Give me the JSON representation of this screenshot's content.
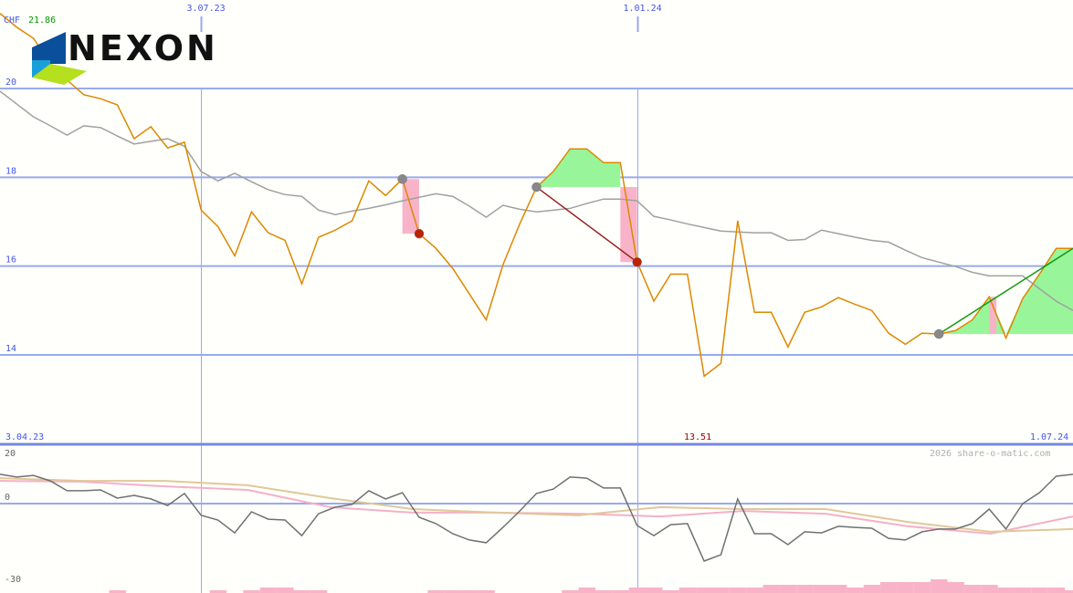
{
  "header": {
    "currency": "CHF",
    "high_value": "21.86",
    "logo_text": "NEXON"
  },
  "footer": {
    "start_date": "3.04.23",
    "low_value": "13.51",
    "end_date": "1.07.24",
    "copyright": "2026 share-o-matic.com"
  },
  "colors": {
    "price": "#dd8800",
    "average": "#a0a0a0",
    "grid": "#99aaee",
    "label": "#4455ee",
    "low": "#990000",
    "high": "#009900",
    "gain_fill": "#99f599",
    "loss_fill": "#f9b3c8",
    "osc_main": "#707070",
    "osc_pink": "#f5b0c8",
    "osc_tan": "#e0c89a",
    "volume": "#f9b3c8"
  },
  "chart_data": [
    {
      "type": "line",
      "ylim": [
        13,
        22
      ],
      "y_ticks": [
        "20",
        "18",
        "16",
        "14"
      ],
      "y_tick_values": [
        20,
        18,
        16,
        14
      ],
      "x_ticks": [
        "3.07.23",
        "1.01.24"
      ],
      "x_tick_weeks": [
        12,
        38
      ],
      "grid": true,
      "series": [
        {
          "values": [
            21.69,
            21.38,
            21.13,
            20.56,
            20.19,
            19.86,
            19.77,
            19.63,
            18.87,
            19.14,
            18.66,
            18.79,
            17.26,
            16.89,
            16.23,
            17.22,
            16.75,
            16.58,
            15.6,
            16.65,
            16.81,
            17.02,
            17.92,
            17.59,
            17.96,
            16.73,
            16.4,
            15.95,
            15.37,
            14.79,
            16.03,
            16.95,
            17.78,
            18.13,
            18.64,
            18.64,
            18.33,
            18.33,
            16.09,
            15.21,
            15.82,
            15.82,
            13.52,
            13.81,
            17.02,
            14.96,
            14.96,
            14.18,
            14.96,
            15.08,
            15.29,
            15.14,
            15.0,
            14.49,
            14.24,
            14.49,
            14.47,
            14.55,
            14.79,
            15.31,
            14.38,
            15.27,
            15.82,
            16.4,
            16.4
          ]
        },
        {
          "values": [
            19.94,
            19.65,
            19.36,
            19.16,
            18.95,
            19.16,
            19.12,
            18.93,
            18.75,
            18.81,
            18.87,
            18.7,
            18.13,
            17.92,
            18.09,
            17.9,
            17.72,
            17.61,
            17.57,
            17.26,
            17.16,
            17.24,
            17.3,
            17.38,
            17.47,
            17.55,
            17.63,
            17.57,
            17.35,
            17.1,
            17.37,
            17.28,
            17.22,
            17.26,
            17.3,
            17.41,
            17.51,
            17.51,
            17.47,
            17.12,
            17.04,
            16.95,
            16.87,
            16.79,
            16.77,
            16.75,
            16.75,
            16.58,
            16.6,
            16.81,
            16.73,
            16.65,
            16.58,
            16.54,
            16.36,
            16.19,
            16.09,
            15.99,
            15.86,
            15.78,
            15.78,
            15.78,
            15.49,
            15.21,
            15.0
          ]
        }
      ],
      "signals": [
        {
          "type": "sell",
          "from_week": 24,
          "to_week": 25
        },
        {
          "type": "buy-hold",
          "from_week": 32,
          "to_week": 37
        },
        {
          "type": "sell",
          "from_week": 32,
          "to_week": 38
        },
        {
          "type": "buy-hold",
          "from_week": 56,
          "to_week": 64
        }
      ]
    },
    {
      "type": "line",
      "ylim": [
        -33,
        23
      ],
      "y_ticks": [
        "20",
        "0",
        "-30"
      ],
      "y_tick_values": [
        20,
        0,
        -30
      ],
      "series": [
        {
          "values": [
            10.7,
            9.7,
            10.3,
            8.3,
            4.7,
            4.7,
            5,
            2,
            3,
            1.7,
            -0.7,
            3.7,
            -4.3,
            -6,
            -10.7,
            -3,
            -5.7,
            -6,
            -11.7,
            -3.7,
            -1.3,
            -0.3,
            4.7,
            1.7,
            4,
            -5,
            -7.3,
            -11,
            -13.3,
            -14.3,
            -8.7,
            -2.7,
            3.7,
            5.3,
            9.7,
            9.3,
            5.7,
            5.7,
            -8,
            -11.7,
            -7.7,
            -7.3,
            -21,
            -18.7,
            1.7,
            -11,
            -11,
            -15,
            -10.3,
            -10.7,
            -8.3,
            -8.7,
            -9,
            -12.7,
            -13.3,
            -10.3,
            -9.3,
            -9.3,
            -7.3,
            -2,
            -9.3,
            0,
            4,
            10,
            10.7
          ]
        },
        {
          "values": [
            8.3,
            8,
            6.3,
            5,
            -1.3,
            -3.3,
            -3.3,
            -3.7,
            -4.7,
            -2.7,
            -3.7,
            -8.3,
            -11,
            -4.7
          ]
        },
        {
          "values": [
            9.3,
            8.3,
            8.3,
            6.7,
            2,
            -2,
            -3.3,
            -4.3,
            -1.3,
            -2,
            -2,
            -6.7,
            -10.3,
            -9.3
          ]
        }
      ]
    },
    {
      "type": "bar",
      "values": [
        0,
        0,
        0,
        0,
        0,
        0,
        0,
        1,
        0,
        0,
        0,
        0,
        0,
        1,
        0,
        1,
        2,
        2,
        1,
        1,
        0,
        0,
        0,
        0,
        0,
        0,
        1,
        1,
        1,
        1,
        0,
        0,
        0,
        0,
        1,
        2,
        1,
        1,
        2,
        2,
        1,
        2,
        2,
        2,
        2,
        2,
        3,
        3,
        3,
        3,
        3,
        2,
        3,
        4,
        4,
        4,
        5,
        4,
        3,
        3,
        2,
        2,
        2,
        2,
        1
      ]
    }
  ]
}
